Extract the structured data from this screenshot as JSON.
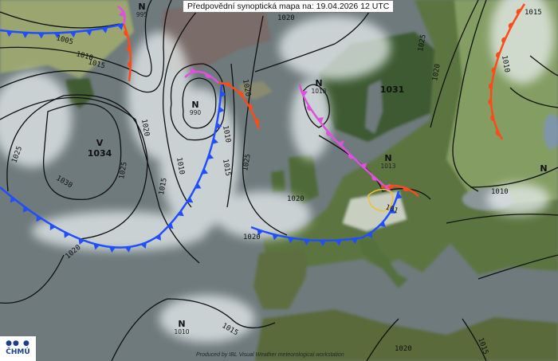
{
  "title": "Předpovědní synoptická mapa na: 19.04.2026 12 UTC",
  "credit": "Produced by IBL Visual Weather meteorological workstation",
  "logo": {
    "mark": "●● ●",
    "text": "ČHMÚ"
  },
  "pressure_centers": [
    {
      "type": "N",
      "value": "995"
    },
    {
      "type": "N",
      "value": "990"
    },
    {
      "type": "V",
      "value": "1034"
    },
    {
      "type": "N",
      "value": "1018"
    },
    {
      "type": "N",
      "value": "1013"
    },
    {
      "type": "N",
      "value": "1010"
    },
    {
      "type": "",
      "value": "1031"
    },
    {
      "type": "N",
      "value": ""
    }
  ],
  "isobar_labels": [
    "1005",
    "1010",
    "1015",
    "1020",
    "1025",
    "1030",
    "1025",
    "1010",
    "1010",
    "1015",
    "1025",
    "1020",
    "1020",
    "1015",
    "1015",
    "1020",
    "1020",
    "1010",
    "1020",
    "1015",
    "1015",
    "1010",
    "1020",
    "1025",
    "1020",
    "101"
  ],
  "front_types": {
    "cold": "cold-front",
    "warm": "warm-front",
    "occluded": "occluded-front"
  },
  "colors": {
    "cold_front": "#1f4fff",
    "warm_front": "#ff4a1a",
    "occluded_front": "#e050e0",
    "isobar": "#111111",
    "sea": "#6e7a7c",
    "land": "#56703e",
    "cloud": "#e8eff0"
  }
}
